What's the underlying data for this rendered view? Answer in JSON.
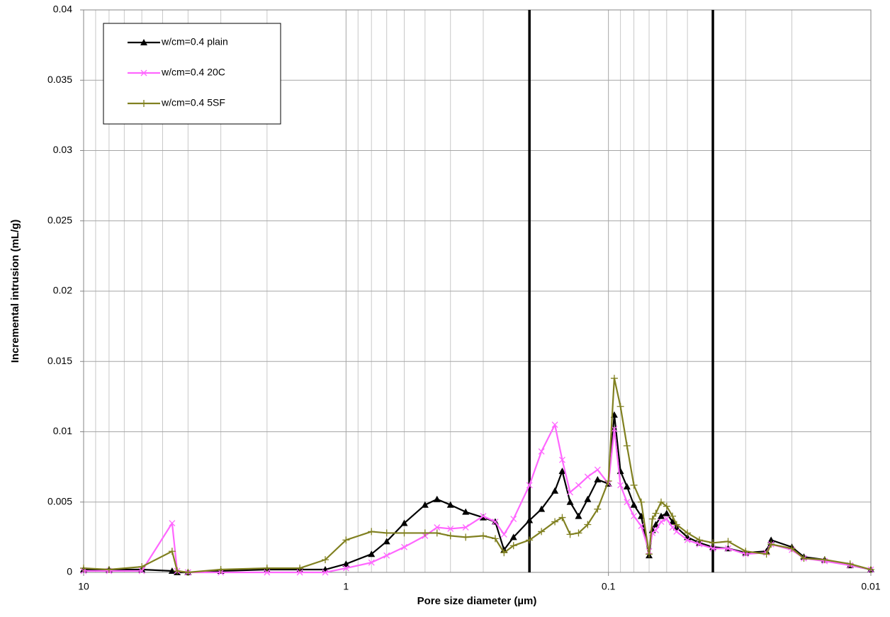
{
  "chart_data": {
    "type": "line",
    "xlabel": "Pore size diameter (µm)",
    "ylabel": "Incremental intrusion (mL/g)",
    "xscale": "log",
    "xlim": [
      10,
      0.01
    ],
    "xticks": [
      10,
      1,
      0.1,
      0.01
    ],
    "ylim": [
      0,
      0.04
    ],
    "yticks": [
      0,
      0.005,
      0.01,
      0.015,
      0.02,
      0.025,
      0.03,
      0.035,
      0.04
    ],
    "grid": true,
    "legend": "upper left",
    "vlines": [
      0.2,
      0.04
    ],
    "vline_color": "#000000",
    "x": [
      10,
      8,
      6,
      4.6,
      4.4,
      4,
      3,
      2,
      1.5,
      1.2,
      1,
      0.8,
      0.7,
      0.6,
      0.5,
      0.45,
      0.4,
      0.35,
      0.3,
      0.27,
      0.25,
      0.23,
      0.2,
      0.18,
      0.16,
      0.15,
      0.14,
      0.13,
      0.12,
      0.11,
      0.1,
      0.095,
      0.09,
      0.085,
      0.08,
      0.075,
      0.07,
      0.068,
      0.066,
      0.063,
      0.06,
      0.057,
      0.055,
      0.05,
      0.045,
      0.04,
      0.035,
      0.03,
      0.025,
      0.024,
      0.02,
      0.018,
      0.015,
      0.012,
      0.01
    ],
    "series": [
      {
        "name": "w/cm=0.4 plain",
        "color": "#000000",
        "marker": "triangle",
        "values": [
          0.0002,
          0.0002,
          0.0002,
          0.0001,
          0.0,
          0.0,
          0.0001,
          0.0002,
          0.0002,
          0.0002,
          0.0006,
          0.0013,
          0.0022,
          0.0035,
          0.0048,
          0.0052,
          0.0048,
          0.0043,
          0.0039,
          0.0036,
          0.0016,
          0.0025,
          0.0037,
          0.0045,
          0.0058,
          0.0072,
          0.005,
          0.004,
          0.0052,
          0.0066,
          0.0063,
          0.0112,
          0.0072,
          0.0061,
          0.0048,
          0.004,
          0.0012,
          0.003,
          0.0034,
          0.004,
          0.0042,
          0.0036,
          0.0032,
          0.0025,
          0.0021,
          0.0018,
          0.0017,
          0.0014,
          0.0015,
          0.0023,
          0.0018,
          0.0011,
          0.0009,
          0.0005,
          0.0002
        ]
      },
      {
        "name": "w/cm=0.4 20C",
        "color": "#ff66ff",
        "marker": "x",
        "values": [
          0.0001,
          0.0001,
          0.0001,
          0.0035,
          0.0001,
          0.0,
          0.0,
          0.0,
          0.0,
          0.0,
          0.0003,
          0.0007,
          0.0012,
          0.0018,
          0.0026,
          0.0032,
          0.0031,
          0.0032,
          0.004,
          0.0036,
          0.0027,
          0.0038,
          0.0062,
          0.0086,
          0.0105,
          0.008,
          0.0057,
          0.0062,
          0.0068,
          0.0073,
          0.0063,
          0.0102,
          0.0062,
          0.005,
          0.004,
          0.0033,
          0.0015,
          0.0028,
          0.003,
          0.0036,
          0.0038,
          0.0032,
          0.0029,
          0.0023,
          0.002,
          0.0017,
          0.0017,
          0.0013,
          0.0014,
          0.002,
          0.0016,
          0.001,
          0.0008,
          0.0005,
          0.0002
        ]
      },
      {
        "name": "w/cm=0.4 5SF",
        "color": "#808020",
        "marker": "plus",
        "values": [
          0.0003,
          0.0002,
          0.0004,
          0.0015,
          0.0001,
          0.0,
          0.0002,
          0.0003,
          0.0003,
          0.0009,
          0.0023,
          0.0029,
          0.0028,
          0.0028,
          0.0028,
          0.0028,
          0.0026,
          0.0025,
          0.0026,
          0.0024,
          0.0014,
          0.0019,
          0.0023,
          0.0029,
          0.0036,
          0.0039,
          0.0027,
          0.0028,
          0.0034,
          0.0045,
          0.0065,
          0.0138,
          0.0118,
          0.009,
          0.0062,
          0.005,
          0.0013,
          0.0038,
          0.0042,
          0.005,
          0.0047,
          0.004,
          0.0034,
          0.0028,
          0.0023,
          0.0021,
          0.0022,
          0.0015,
          0.0013,
          0.002,
          0.0017,
          0.001,
          0.0009,
          0.0006,
          0.0002
        ]
      }
    ]
  }
}
